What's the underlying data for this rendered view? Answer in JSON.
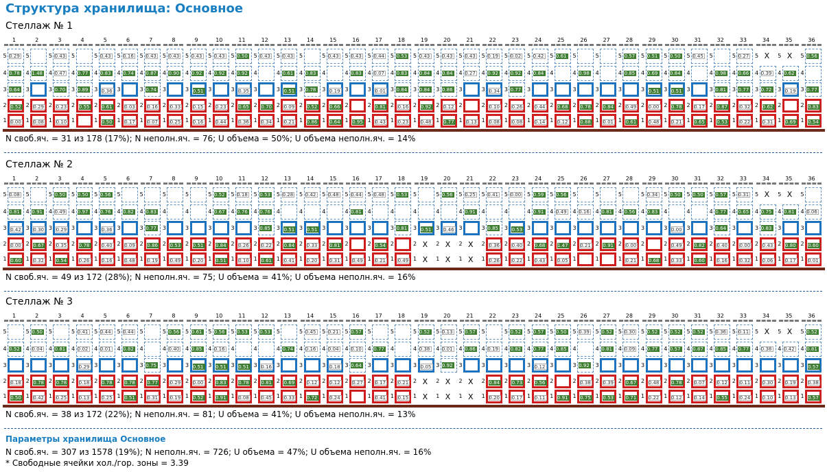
{
  "title": "Структура хранилища: Основное",
  "racks": [
    {
      "title": "Стеллаж № 1",
      "stats": "N своб.яч. = 31 из 178 (17%); N неполн.яч. = 76; U объема = 50%; U объема неполн.яч. = 14%",
      "cols": [
        {
          "n": "1",
          "c": [
            "0.29",
            "0.78",
            "0.64",
            "0.52",
            "0.00"
          ]
        },
        {
          "n": "2",
          "c": [
            "",
            "1.48",
            "",
            "0.29",
            "0.08"
          ]
        },
        {
          "n": "3",
          "c": [
            "0.43",
            "0.47",
            "0.70",
            "0.23",
            "0.10"
          ]
        },
        {
          "n": "4",
          "c": [
            "",
            "0.77",
            "0.89",
            "0.55",
            ""
          ]
        },
        {
          "n": "5",
          "c": [
            "0.43",
            "0.83",
            "0.36",
            "0.61",
            "0.50"
          ]
        },
        {
          "n": "6",
          "c": [
            "0.16",
            "0.74",
            "",
            "0.03",
            "0.17"
          ]
        },
        {
          "n": "7",
          "c": [
            "0.43",
            "0.87",
            "0.74",
            "0.16",
            "0.07"
          ]
        },
        {
          "n": "8",
          "c": [
            "0.43",
            "0.90",
            "",
            "0.33",
            "0.25"
          ]
        },
        {
          "n": "9",
          "c": [
            "0.43",
            "0.92",
            "0.51",
            "0.15",
            "0.16"
          ]
        },
        {
          "n": "10",
          "c": [
            "0.43",
            "0.92",
            "",
            "0.23",
            "0.44"
          ]
        },
        {
          "n": "11",
          "c": [
            "0.50",
            "0.92",
            "0.35",
            "0.65",
            "0.36"
          ]
        },
        {
          "n": "12",
          "c": [
            "0.43",
            "",
            "",
            "0.70",
            "0.34"
          ]
        },
        {
          "n": "13",
          "c": [
            "0.43",
            "0.61",
            "0.51",
            "0.09",
            "0.21"
          ]
        },
        {
          "n": "14",
          "c": [
            "",
            "0.83",
            "0.78",
            "0.52",
            "0.86"
          ]
        },
        {
          "n": "15",
          "c": [
            "0.43",
            "",
            "0.19",
            "0.66",
            "0.64"
          ]
        },
        {
          "n": "16",
          "c": [
            "0.43",
            "0.83",
            "",
            "",
            "0.95"
          ]
        },
        {
          "n": "17",
          "c": [
            "0.44",
            "0.07",
            "0.01",
            "0.81",
            "0.43"
          ]
        },
        {
          "n": "18",
          "c": [
            "0.53",
            "0.83",
            "0.84",
            "0.16",
            "0.23"
          ]
        },
        {
          "n": "19",
          "c": [
            "0.43",
            "0.84",
            "0.84",
            "0.92",
            "0.48"
          ]
        },
        {
          "n": "20",
          "c": [
            "0.43",
            "0.84",
            "0.86",
            "0.12",
            "0.77"
          ]
        },
        {
          "n": "21",
          "c": [
            "0.43",
            "0.27",
            "",
            "",
            "0.13"
          ]
        },
        {
          "n": "22",
          "c": [
            "0.19",
            "0.92",
            "0.34",
            "0.10",
            "0.08"
          ]
        },
        {
          "n": "23",
          "c": [
            "0.02",
            "0.92",
            "0.77",
            "0.26",
            "0.08"
          ]
        },
        {
          "n": "24",
          "c": [
            "0.42",
            "0.84",
            "",
            "0.44",
            "0.14"
          ]
        },
        {
          "n": "25",
          "c": [
            "0.61",
            "",
            "",
            "0.68",
            "0.12"
          ]
        },
        {
          "n": "26",
          "c": [
            "",
            "0.98",
            "",
            "0.78",
            "0.88"
          ]
        },
        {
          "n": "27",
          "c": [
            "",
            "",
            "",
            "0.84",
            "0.01"
          ]
        },
        {
          "n": "28",
          "c": [
            "0.57",
            "0.85",
            "",
            "0.49",
            "0.61"
          ]
        },
        {
          "n": "29",
          "c": [
            "0.51",
            "0.69",
            "0.51",
            "0.00",
            "0.48"
          ]
        },
        {
          "n": "30",
          "c": [
            "0.50",
            "0.84",
            "0.51",
            "0.78",
            "0.21"
          ]
        },
        {
          "n": "31",
          "c": [
            "0.45",
            "",
            "",
            "0.17",
            "0.65"
          ]
        },
        {
          "n": "32",
          "c": [
            "",
            "0.98",
            "0.81",
            "0.87",
            "0.53"
          ]
        },
        {
          "n": "33",
          "c": [
            "0.27",
            "0.66",
            "0.77",
            "0.32",
            "0.22"
          ]
        },
        {
          "n": "34",
          "c": [
            "X",
            "0.39",
            "0.72",
            "0.62",
            "0.31"
          ]
        },
        {
          "n": "35",
          "c": [
            "X",
            "0.62",
            "0.19",
            "",
            "0.69"
          ]
        },
        {
          "n": "36",
          "c": [
            "0.56",
            "",
            "0.77",
            "0.83",
            "0.54"
          ]
        }
      ]
    },
    {
      "title": "Стеллаж № 2",
      "stats": "N своб.яч. = 49 из 172 (28%); N неполн.яч. = 75; U объема = 41%; U объема неполн.яч. = 16%",
      "cols": [
        {
          "n": "1",
          "c": [
            "0.08",
            "0.81",
            "0.42",
            "0.00",
            "0.60"
          ]
        },
        {
          "n": "2",
          "c": [
            "",
            "0.91",
            "0.30",
            "0.67",
            "0.32"
          ]
        },
        {
          "n": "3",
          "c": [
            "0.50",
            "0.49",
            "0.29",
            "0.35",
            "0.54"
          ]
        },
        {
          "n": "4",
          "c": [
            "0.50",
            "0.97",
            "",
            "0.78",
            "0.26"
          ]
        },
        {
          "n": "5",
          "c": [
            "0.56",
            "0.76",
            "0.36",
            "0.40",
            "0.16"
          ]
        },
        {
          "n": "6",
          "c": [
            "",
            "0.82",
            "",
            "0.09",
            "0.48"
          ]
        },
        {
          "n": "7",
          "c": [
            "",
            "0.83",
            "0.77",
            "0.86",
            "0.19"
          ]
        },
        {
          "n": "8",
          "c": [
            "",
            "",
            "",
            "0.53",
            "0.49"
          ]
        },
        {
          "n": "9",
          "c": [
            "",
            "",
            "",
            "0.51",
            "0.20"
          ]
        },
        {
          "n": "10",
          "c": [
            "0.52",
            "0.67",
            "",
            "0.84",
            "0.51"
          ]
        },
        {
          "n": "11",
          "c": [
            "0.18",
            "0.76",
            "",
            "0.26",
            "0.10"
          ]
        },
        {
          "n": "12",
          "c": [
            "0.53",
            "0.76",
            "0.85",
            "0.22",
            "0.61"
          ]
        },
        {
          "n": "13",
          "c": [
            "0.28",
            "",
            "0.51",
            "0.84",
            "0.41"
          ]
        },
        {
          "n": "14",
          "c": [
            "0.42",
            "",
            "0.51",
            "0.33",
            "0.20"
          ]
        },
        {
          "n": "15",
          "c": [
            "0.48",
            "",
            "",
            "0.81",
            "0.31"
          ]
        },
        {
          "n": "16",
          "c": [
            "0.44",
            "0.81",
            "",
            "",
            "0.49"
          ]
        },
        {
          "n": "17",
          "c": [
            "0.48",
            "",
            "",
            "0.54",
            "0.21"
          ]
        },
        {
          "n": "18",
          "c": [
            "0.53",
            "",
            "0.81",
            "",
            "0.49"
          ]
        },
        {
          "n": "19",
          "c": [
            "",
            "",
            "0.51",
            "X",
            "X"
          ]
        },
        {
          "n": "20",
          "c": [
            "0.56",
            "",
            "0.46",
            "X",
            "X"
          ]
        },
        {
          "n": "21",
          "c": [
            "0.25",
            "0.91",
            "",
            "X",
            "X"
          ]
        },
        {
          "n": "22",
          "c": [
            "0.41",
            "",
            "0.85",
            "0.36",
            "0.26"
          ]
        },
        {
          "n": "23",
          "c": [
            "0.00",
            "",
            "0.53",
            "0.40",
            "0.22"
          ]
        },
        {
          "n": "24",
          "c": [
            "0.59",
            "0.91",
            "",
            "0.68",
            "0.43"
          ]
        },
        {
          "n": "25",
          "c": [
            "0.56",
            "0.49",
            "",
            "1.47",
            "0.05"
          ]
        },
        {
          "n": "26",
          "c": [
            "",
            "0.16",
            "",
            "0.21",
            ""
          ]
        },
        {
          "n": "27",
          "c": [
            "",
            "0.81",
            "",
            "0.91",
            ""
          ]
        },
        {
          "n": "28",
          "c": [
            "",
            "0.56",
            "",
            "0.00",
            "0.21"
          ]
        },
        {
          "n": "29",
          "c": [
            "0.34",
            "0.83",
            "",
            "",
            "0.68"
          ]
        },
        {
          "n": "30",
          "c": [
            "0.50",
            "",
            "0.00",
            "0.49",
            "0.33"
          ]
        },
        {
          "n": "31",
          "c": [
            "0.50",
            "",
            "",
            "0.82",
            "0.60"
          ]
        },
        {
          "n": "32",
          "c": [
            "0.57",
            "0.77",
            "0.64",
            "0.40",
            "0.16"
          ]
        },
        {
          "n": "33",
          "c": [
            "0.31",
            "0.65",
            "",
            "0.00",
            "0.32"
          ]
        },
        {
          "n": "34",
          "c": [
            "X",
            "0.75",
            "0.83",
            "0.43",
            "0.06"
          ]
        },
        {
          "n": "35",
          "c": [
            "X",
            "0.81",
            "",
            "0.80",
            "0.17"
          ]
        },
        {
          "n": "36",
          "c": [
            "",
            "0.06",
            "",
            "0.60",
            "0.01"
          ]
        }
      ]
    },
    {
      "title": "Стеллаж № 3",
      "stats": "N своб.яч. = 38 из 172 (22%); N неполн.яч. = 81; U объема = 41%; U объема неполн.яч. = 13%",
      "cols": [
        {
          "n": "1",
          "c": [
            "",
            "0.52",
            "",
            "0.18",
            "0.50"
          ]
        },
        {
          "n": "2",
          "c": [
            "0.50",
            "0.04",
            "",
            "0.78",
            "0.42"
          ]
        },
        {
          "n": "3",
          "c": [
            "",
            "0.81",
            "",
            "0.78",
            "0.25"
          ]
        },
        {
          "n": "4",
          "c": [
            "0.41",
            "0.02",
            "0.29",
            "0.18",
            "0.13"
          ]
        },
        {
          "n": "5",
          "c": [
            "0.44",
            "0.01",
            "",
            "0.78",
            "0.25"
          ]
        },
        {
          "n": "6",
          "c": [
            "0.44",
            "0.82",
            "",
            "0.78",
            "0.51"
          ]
        },
        {
          "n": "7",
          "c": [
            "",
            "",
            "0.75",
            "0.77",
            "0.31"
          ]
        },
        {
          "n": "8",
          "c": [
            "0.56",
            "0.40",
            "",
            "0.29",
            "0.19"
          ]
        },
        {
          "n": "9",
          "c": [
            "0.61",
            "0.85",
            "0.51",
            "0.00",
            "0.52"
          ]
        },
        {
          "n": "10",
          "c": [
            "0.56",
            "0.16",
            "0.51",
            "0.83",
            "0.91"
          ]
        },
        {
          "n": "11",
          "c": [
            "0.53",
            "",
            "0.51",
            "0.78",
            "0.08"
          ]
        },
        {
          "n": "12",
          "c": [
            "0.53",
            "",
            "0.16",
            "0.81",
            "0.45"
          ]
        },
        {
          "n": "13",
          "c": [
            "",
            "0.74",
            "",
            "0.69",
            "0.33"
          ]
        },
        {
          "n": "14",
          "c": [
            "0.45",
            "0.16",
            "",
            "0.12",
            "0.72"
          ]
        },
        {
          "n": "15",
          "c": [
            "0.21",
            "0.04",
            "0.18",
            "0.12",
            "0.24"
          ]
        },
        {
          "n": "16",
          "c": [
            "0.57",
            "0.10",
            "0.64",
            "0.27",
            ""
          ]
        },
        {
          "n": "17",
          "c": [
            "",
            "0.77",
            "",
            "0.17",
            "0.41"
          ]
        },
        {
          "n": "18",
          "c": [
            "",
            "",
            "",
            "0.21",
            "0.15"
          ]
        },
        {
          "n": "19",
          "c": [
            "0.52",
            "0.38",
            "0.05",
            "X",
            "X"
          ]
        },
        {
          "n": "20",
          "c": [
            "0.13",
            "0.01",
            "0.92",
            "X",
            "X"
          ]
        },
        {
          "n": "21",
          "c": [
            "0.57",
            "0.86",
            "",
            "X",
            "X"
          ]
        },
        {
          "n": "22",
          "c": [
            "",
            "0.19",
            "",
            "0.84",
            "0.20"
          ]
        },
        {
          "n": "23",
          "c": [
            "0.52",
            "0.82",
            "",
            "0.73",
            "0.17"
          ]
        },
        {
          "n": "24",
          "c": [
            "0.57",
            "0.77",
            "0.12",
            "0.56",
            "0.11"
          ]
        },
        {
          "n": "25",
          "c": [
            "0.50",
            "0.85",
            "",
            "",
            "0.91"
          ]
        },
        {
          "n": "26",
          "c": [
            "0.39",
            "",
            "0.92",
            "0.38",
            "0.75"
          ]
        },
        {
          "n": "27",
          "c": [
            "0.52",
            "0.81",
            "",
            "0.39",
            "0.53"
          ]
        },
        {
          "n": "28",
          "c": [
            "0.30",
            "0.09",
            "",
            "0.67",
            "0.71"
          ]
        },
        {
          "n": "29",
          "c": [
            "0.52",
            "0.77",
            "",
            "0.48",
            "0.22"
          ]
        },
        {
          "n": "30",
          "c": [
            "0.52",
            "0.57",
            "",
            "0.78",
            "0.12"
          ]
        },
        {
          "n": "31",
          "c": [
            "0.52",
            "0.87",
            "",
            "0.07",
            "0.14"
          ]
        },
        {
          "n": "32",
          "c": [
            "0.36",
            "0.85",
            "",
            "0.12",
            "0.55"
          ]
        },
        {
          "n": "33",
          "c": [
            "0.11",
            "0.77",
            "",
            "0.11",
            "0.24"
          ]
        },
        {
          "n": "34",
          "c": [
            "X",
            "0.38",
            "",
            "0.30",
            "0.10"
          ]
        },
        {
          "n": "35",
          "c": [
            "X",
            "0.42",
            "",
            "0.19",
            "0.13"
          ]
        },
        {
          "n": "36",
          "c": [
            "0.52",
            "0.81",
            "0.57",
            "0.38",
            "0.57"
          ]
        }
      ]
    }
  ],
  "params": {
    "title": "Параметры хранилища Основное",
    "line1": "N своб.яч. = 307 из 1578 (19%); N неполн.яч. = 726; U объема = 47%; U объема неполн.яч. = 16%",
    "line2": "* Свободные ячейки хол./гор. зоны = 3.39"
  },
  "colors": {
    "title": "#1a7fc1",
    "bar": "#3e7d32",
    "free": "#1e73be",
    "full": "#d01c1c",
    "floor": "#6b2a1a"
  }
}
